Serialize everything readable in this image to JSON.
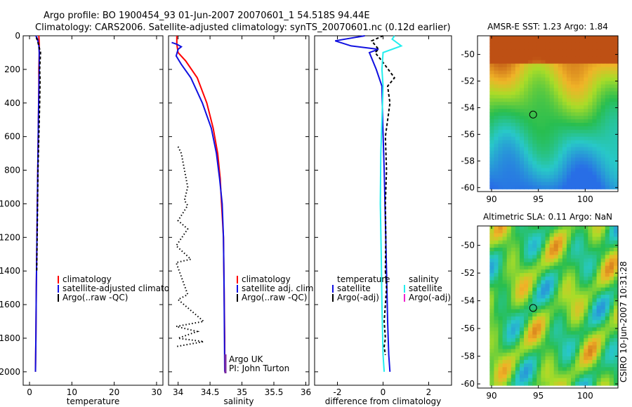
{
  "header": {
    "line1": "Argo profile: BO 1900454_93 01-Jun-2007 20070601_1 54.518S 94.44E",
    "line2": "Climatology: CARS2006. Satellite-adjusted climatology: synTS_20070601.nc (0.12d earlier)"
  },
  "side_label": "CSIRO 10-Jun-2007 10:31:28",
  "colors": {
    "red": "#ff0000",
    "blue": "#1010e0",
    "black": "#000000",
    "cyan": "#22eeee",
    "magenta": "#ee22cc",
    "purple": "#7a2aa0"
  },
  "chart_data": [
    {
      "type": "line",
      "id": "temperature",
      "xlabel": "temperature",
      "ylabel": "",
      "xlim": [
        -1.5,
        31.5
      ],
      "ylim": [
        2080,
        0
      ],
      "xticks": [
        0,
        10,
        20,
        30
      ],
      "yticks": [
        0,
        200,
        400,
        600,
        800,
        1000,
        1200,
        1400,
        1600,
        1800,
        2000
      ],
      "series": [
        {
          "name": "climatology",
          "color": "#ff0000",
          "dash": "solid",
          "x": [
            2.2,
            2.3,
            2.3,
            2.2,
            2.2,
            2.1,
            2.0,
            1.9,
            1.8,
            1.7,
            1.6,
            1.5,
            1.4
          ],
          "y": [
            0,
            50,
            100,
            200,
            300,
            500,
            700,
            900,
            1100,
            1300,
            1500,
            1800,
            2000
          ]
        },
        {
          "name": "satellite-adjusted climatology",
          "color": "#1010e0",
          "dash": "solid",
          "x": [
            1.5,
            1.9,
            2.2,
            2.3,
            2.3,
            2.1,
            2.0,
            1.9,
            1.8,
            1.7,
            1.6,
            1.5,
            1.4
          ],
          "y": [
            0,
            20,
            60,
            100,
            200,
            500,
            700,
            900,
            1100,
            1300,
            1500,
            1800,
            2000
          ]
        },
        {
          "name": "Argo(..raw -QC)",
          "color": "#000000",
          "dash": "dash",
          "x": [
            1.6,
            2.0,
            2.6,
            2.4,
            2.5,
            2.4,
            2.2,
            2.0,
            1.9,
            1.8,
            1.7
          ],
          "y": [
            10,
            40,
            100,
            200,
            260,
            400,
            600,
            800,
            1000,
            1200,
            1400
          ]
        }
      ],
      "legend": [
        "climatology",
        "satellite-adjusted climatology",
        "Argo(..raw -QC)"
      ]
    },
    {
      "type": "line",
      "id": "salinity",
      "xlabel": "salinity",
      "xlim": [
        33.85,
        36.05
      ],
      "ylim": [
        2080,
        0
      ],
      "xticks": [
        34,
        34.5,
        35,
        35.5,
        36
      ],
      "yticks": [
        0,
        200,
        400,
        600,
        800,
        1000,
        1200,
        1400,
        1600,
        1800,
        2000
      ],
      "series": [
        {
          "name": "climatology",
          "color": "#ff0000",
          "dash": "solid",
          "x": [
            33.98,
            33.98,
            34.0,
            34.12,
            34.3,
            34.45,
            34.55,
            34.62,
            34.66,
            34.68,
            34.71,
            34.72,
            34.73,
            34.73
          ],
          "y": [
            0,
            50,
            100,
            150,
            250,
            400,
            550,
            700,
            850,
            1000,
            1200,
            1500,
            1800,
            2000
          ]
        },
        {
          "name": "satellite adj. clim.",
          "color": "#1010e0",
          "dash": "solid",
          "x": [
            33.9,
            33.98,
            34.05,
            34.0,
            33.97,
            34.05,
            34.2,
            34.38,
            34.52,
            34.6,
            34.65,
            34.69,
            34.71,
            34.72,
            34.73
          ],
          "y": [
            40,
            50,
            65,
            80,
            120,
            170,
            250,
            400,
            550,
            700,
            850,
            1000,
            1200,
            1500,
            2000
          ]
        },
        {
          "name": "Argo(..raw -QC)",
          "color": "#000000",
          "dash": "dot",
          "x": [
            34.0,
            34.05,
            34.15,
            34.1,
            34.15,
            34.0,
            34.15,
            33.97,
            34.2,
            33.97,
            34.15,
            34.0,
            34.4,
            33.97,
            34.3,
            34.0,
            34.4,
            33.97
          ],
          "y": [
            660,
            700,
            900,
            980,
            1010,
            1100,
            1150,
            1250,
            1330,
            1350,
            1540,
            1570,
            1700,
            1730,
            1760,
            1800,
            1820,
            1850
          ]
        }
      ],
      "legend": [
        "climatology",
        "satellite adj. clim.",
        "Argo(..raw -QC)"
      ],
      "annotation": [
        "Argo UK",
        "PI: John Turton"
      ]
    },
    {
      "type": "line",
      "id": "difference",
      "xlabel": "difference from climatology",
      "xlim": [
        -3,
        3
      ],
      "ylim": [
        2080,
        0
      ],
      "xticks": [
        -2,
        0,
        2
      ],
      "yticks": [
        0,
        200,
        400,
        600,
        800,
        1000,
        1200,
        1400,
        1600,
        1800,
        2000
      ],
      "series": [
        {
          "name": "temperature satellite",
          "color": "#1010e0",
          "dash": "solid",
          "x": [
            -0.8,
            -2.1,
            -1.4,
            -0.2,
            -0.6,
            -0.3,
            -0.05,
            -0.02,
            0.05,
            0.1,
            0.15,
            0.2,
            0.25,
            0.3
          ],
          "y": [
            0,
            30,
            60,
            80,
            100,
            200,
            300,
            500,
            800,
            1100,
            1400,
            1700,
            1900,
            2000
          ]
        },
        {
          "name": "temperature Argo(-adj)",
          "color": "#000000",
          "dash": "dash",
          "x": [
            0.0,
            -0.5,
            -0.2,
            -0.35,
            -0.05,
            0.5,
            0.2,
            0.3,
            0.1,
            0.15,
            0.1,
            0.12,
            0.1
          ],
          "y": [
            0,
            30,
            80,
            100,
            150,
            250,
            300,
            400,
            600,
            800,
            1000,
            1200,
            1400
          ]
        },
        {
          "name": "salinity satellite",
          "color": "#22eeee",
          "dash": "solid",
          "x": [
            0.5,
            0.4,
            0.8,
            0.0,
            -0.05,
            0.0,
            -0.05,
            -0.1,
            -0.12,
            -0.08,
            -0.05,
            0.0,
            0.05
          ],
          "y": [
            0,
            20,
            60,
            100,
            200,
            300,
            500,
            700,
            1000,
            1300,
            1600,
            1900,
            2000
          ]
        },
        {
          "name": "salinity Argo(-adj)",
          "color": "#000000",
          "dash": "dash",
          "x": [
            0.1,
            0.15,
            0.1,
            0.05,
            0.1,
            0.05,
            0.1
          ],
          "y": [
            1400,
            1500,
            1600,
            1700,
            1800,
            1850,
            1900
          ]
        }
      ],
      "legend_groups": [
        {
          "title": "temperature",
          "entries": [
            "satellite",
            "Argo(-adj)"
          ]
        },
        {
          "title": "salinity",
          "entries": [
            "satellite",
            "Argo(-adj)"
          ]
        }
      ]
    },
    {
      "type": "heatmap",
      "id": "sst",
      "title": "AMSR-E SST: 1.23  Argo: 1.84",
      "xlim": [
        88.5,
        103.5
      ],
      "ylim": [
        -60.3,
        -48.6
      ],
      "xticks": [
        90,
        95,
        100
      ],
      "yticks": [
        -50,
        -52,
        -54,
        -56,
        -58,
        -60
      ],
      "marker": {
        "lon": 94.44,
        "lat": -54.518
      }
    },
    {
      "type": "heatmap",
      "id": "sla",
      "title": "Altimetric SLA: 0.11  Argo: NaN",
      "xlim": [
        88.5,
        103.5
      ],
      "ylim": [
        -60.3,
        -48.6
      ],
      "xticks": [
        90,
        95,
        100
      ],
      "yticks": [
        -50,
        -52,
        -54,
        -56,
        -58,
        -60
      ],
      "marker": {
        "lon": 94.44,
        "lat": -54.518
      }
    }
  ]
}
